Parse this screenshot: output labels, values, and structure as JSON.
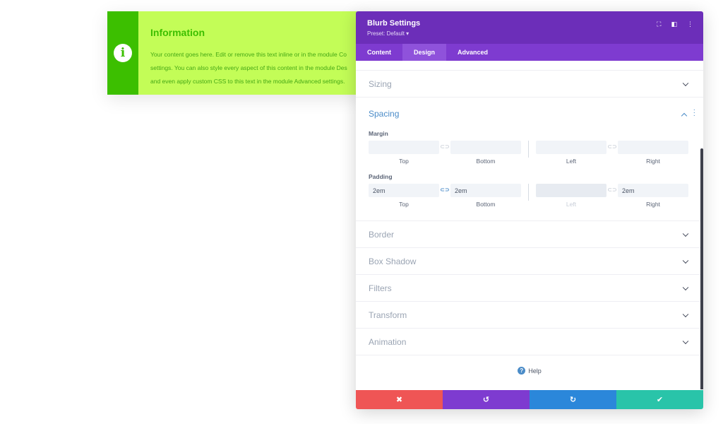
{
  "blurb": {
    "title": "Information",
    "text_lines": [
      "Your content goes here. Edit or remove this text inline or in the module Co",
      "settings. You can also style every aspect of this content in the module Des",
      "and even apply custom CSS to this text in the module Advanced settings."
    ],
    "icon": "info-icon",
    "colors": {
      "accent": "#3cbf00",
      "background": "#c3fd57"
    }
  },
  "panel": {
    "title": "Blurb Settings",
    "preset": "Preset: Default",
    "tabs": [
      {
        "label": "Content",
        "active": false
      },
      {
        "label": "Design",
        "active": true
      },
      {
        "label": "Advanced",
        "active": false
      }
    ],
    "sections_top": [
      {
        "label": "Sizing"
      }
    ],
    "spacing": {
      "label": "Spacing",
      "margin": {
        "label": "Margin",
        "top": "",
        "bottom": "",
        "left": "",
        "right": "",
        "captions": [
          "Top",
          "Bottom",
          "Left",
          "Right"
        ]
      },
      "padding": {
        "label": "Padding",
        "top": "2em",
        "bottom": "2em",
        "left": "",
        "right": "2em",
        "captions": [
          "Top",
          "Bottom",
          "Left",
          "Right"
        ]
      }
    },
    "sections_bottom": [
      {
        "label": "Border"
      },
      {
        "label": "Box Shadow"
      },
      {
        "label": "Filters"
      },
      {
        "label": "Transform"
      },
      {
        "label": "Animation"
      }
    ],
    "help_label": "Help",
    "footer": {
      "cancel": "✖",
      "undo": "↺",
      "redo": "↻",
      "save": "✔"
    },
    "colors": {
      "header": "#6c2eb9",
      "tabs": "#7e3bd0",
      "link": "#4b8cc8"
    }
  }
}
